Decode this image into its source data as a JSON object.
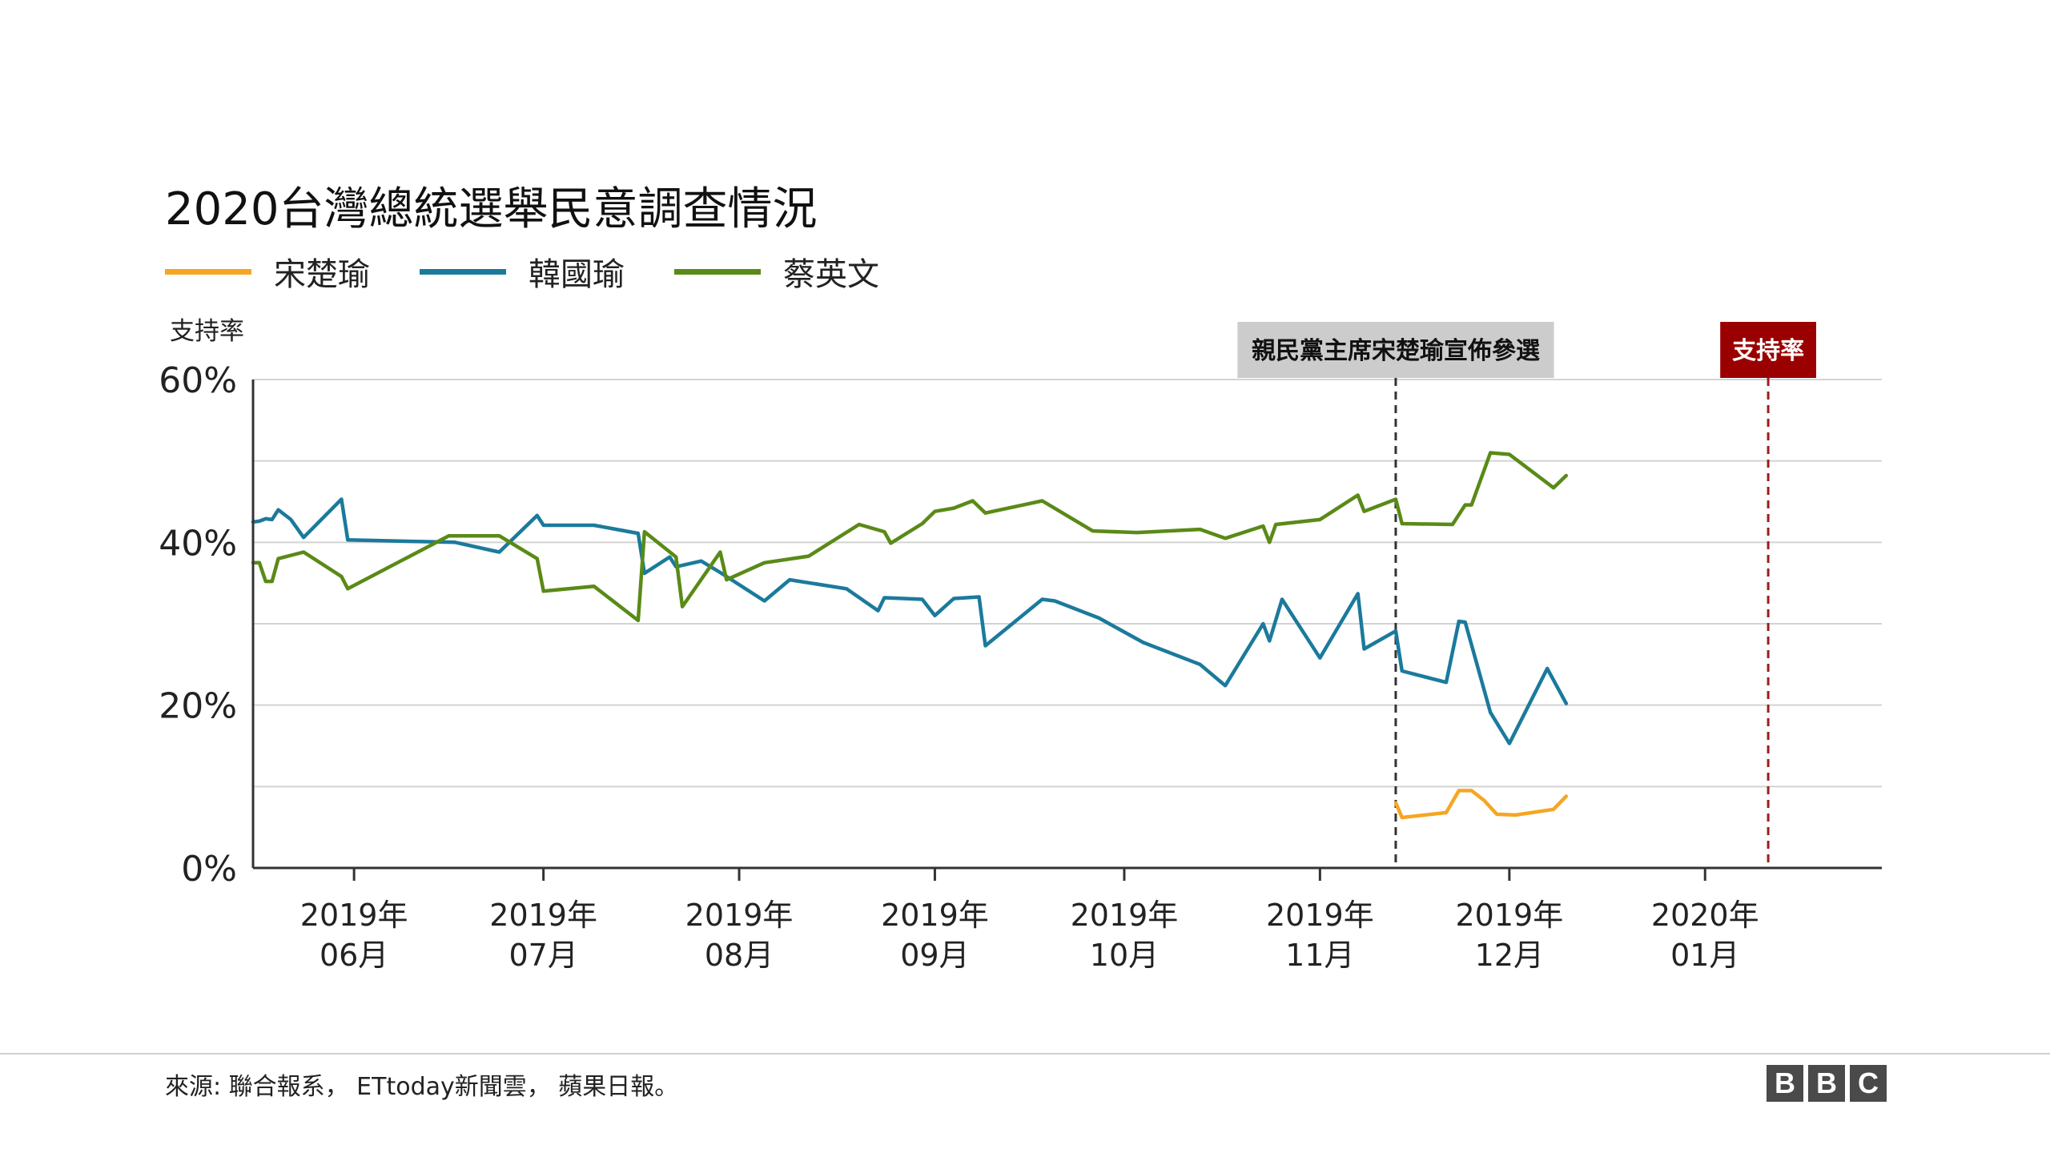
{
  "title": "2020台灣總統選舉民意調查情況",
  "legend": [
    {
      "label": "宋楚瑜",
      "color": "#f5a623"
    },
    {
      "label": "韓國瑜",
      "color": "#1b7a9c"
    },
    {
      "label": "蔡英文",
      "color": "#5a8a17"
    }
  ],
  "source_note": "來源: 聯合報系， ETtoday新聞雲， 蘋果日報。",
  "logo_text": "BBC",
  "chart_data": {
    "type": "line",
    "ylabel": "支持率",
    "ylim": [
      0,
      60
    ],
    "y_ticks": [
      "0%",
      "20%",
      "40%",
      "60%"
    ],
    "gridlines": true,
    "x_range": [
      "2019-05-16",
      "2020-01-29"
    ],
    "x_ticks": [
      {
        "date": "2019-06-01",
        "line1": "2019年",
        "line2": "06月"
      },
      {
        "date": "2019-07-01",
        "line1": "2019年",
        "line2": "07月"
      },
      {
        "date": "2019-08-01",
        "line1": "2019年",
        "line2": "08月"
      },
      {
        "date": "2019-09-01",
        "line1": "2019年",
        "line2": "09月"
      },
      {
        "date": "2019-10-01",
        "line1": "2019年",
        "line2": "10月"
      },
      {
        "date": "2019-11-01",
        "line1": "2019年",
        "line2": "11月"
      },
      {
        "date": "2019-12-01",
        "line1": "2019年",
        "line2": "12月"
      },
      {
        "date": "2020-01-01",
        "line1": "2020年",
        "line2": "01月"
      }
    ],
    "annotations": [
      {
        "date": "2019-11-13",
        "text": "親民黨主席宋楚瑜宣佈參選",
        "line_color": "#333333",
        "box_color": "#cccccc",
        "text_color": "#111111"
      },
      {
        "date": "2020-01-11",
        "text": "支持率",
        "line_color": "#9b1c1c",
        "box_color": "#9b0000",
        "text_color": "#ffffff"
      }
    ],
    "series": [
      {
        "name": "宋楚瑜",
        "color": "#f5a623",
        "points": [
          [
            "2019-11-13",
            8.0
          ],
          [
            "2019-11-14",
            6.2
          ],
          [
            "2019-11-21",
            6.8
          ],
          [
            "2019-11-23",
            9.5
          ],
          [
            "2019-11-25",
            9.5
          ],
          [
            "2019-11-27",
            8.3
          ],
          [
            "2019-11-29",
            6.6
          ],
          [
            "2019-12-02",
            6.5
          ],
          [
            "2019-12-08",
            7.2
          ],
          [
            "2019-12-10",
            8.8
          ]
        ]
      },
      {
        "name": "韓國瑜",
        "color": "#1b7a9c",
        "points": [
          [
            "2019-05-16",
            42.5
          ],
          [
            "2019-05-17",
            42.6
          ],
          [
            "2019-05-18",
            42.9
          ],
          [
            "2019-05-19",
            42.8
          ],
          [
            "2019-05-20",
            44.0
          ],
          [
            "2019-05-22",
            42.8
          ],
          [
            "2019-05-24",
            40.6
          ],
          [
            "2019-05-30",
            45.3
          ],
          [
            "2019-05-31",
            40.3
          ],
          [
            "2019-06-17",
            40.0
          ],
          [
            "2019-06-24",
            38.8
          ],
          [
            "2019-06-30",
            43.3
          ],
          [
            "2019-07-01",
            42.1
          ],
          [
            "2019-07-09",
            42.1
          ],
          [
            "2019-07-16",
            41.1
          ],
          [
            "2019-07-17",
            36.2
          ],
          [
            "2019-07-21",
            38.2
          ],
          [
            "2019-07-22",
            37.0
          ],
          [
            "2019-07-26",
            37.7
          ],
          [
            "2019-07-29",
            36.3
          ],
          [
            "2019-08-05",
            32.8
          ],
          [
            "2019-08-09",
            35.4
          ],
          [
            "2019-08-18",
            34.3
          ],
          [
            "2019-08-23",
            31.6
          ],
          [
            "2019-08-24",
            33.2
          ],
          [
            "2019-08-30",
            33.0
          ],
          [
            "2019-09-01",
            31.0
          ],
          [
            "2019-09-04",
            33.1
          ],
          [
            "2019-09-08",
            33.3
          ],
          [
            "2019-09-09",
            27.3
          ],
          [
            "2019-09-18",
            33.0
          ],
          [
            "2019-09-20",
            32.8
          ],
          [
            "2019-09-27",
            30.7
          ],
          [
            "2019-10-04",
            27.7
          ],
          [
            "2019-10-13",
            25.0
          ],
          [
            "2019-10-17",
            22.4
          ],
          [
            "2019-10-23",
            30.0
          ],
          [
            "2019-10-24",
            27.9
          ],
          [
            "2019-10-26",
            33.0
          ],
          [
            "2019-11-01",
            25.8
          ],
          [
            "2019-11-07",
            33.7
          ],
          [
            "2019-11-08",
            26.9
          ],
          [
            "2019-11-13",
            29.1
          ],
          [
            "2019-11-14",
            24.2
          ],
          [
            "2019-11-21",
            22.8
          ],
          [
            "2019-11-23",
            30.3
          ],
          [
            "2019-11-24",
            30.2
          ],
          [
            "2019-11-28",
            19.1
          ],
          [
            "2019-12-01",
            15.3
          ],
          [
            "2019-12-07",
            24.5
          ],
          [
            "2019-12-10",
            20.2
          ]
        ]
      },
      {
        "name": "蔡英文",
        "color": "#5a8a17",
        "points": [
          [
            "2019-05-16",
            37.5
          ],
          [
            "2019-05-17",
            37.5
          ],
          [
            "2019-05-18",
            35.2
          ],
          [
            "2019-05-19",
            35.2
          ],
          [
            "2019-05-20",
            38.0
          ],
          [
            "2019-05-24",
            38.8
          ],
          [
            "2019-05-30",
            35.8
          ],
          [
            "2019-05-31",
            34.3
          ],
          [
            "2019-06-16",
            40.8
          ],
          [
            "2019-06-24",
            40.8
          ],
          [
            "2019-06-30",
            38.0
          ],
          [
            "2019-07-01",
            34.0
          ],
          [
            "2019-07-09",
            34.6
          ],
          [
            "2019-07-16",
            30.4
          ],
          [
            "2019-07-17",
            41.3
          ],
          [
            "2019-07-22",
            38.2
          ],
          [
            "2019-07-23",
            32.1
          ],
          [
            "2019-07-29",
            38.8
          ],
          [
            "2019-07-30",
            35.4
          ],
          [
            "2019-08-05",
            37.5
          ],
          [
            "2019-08-12",
            38.3
          ],
          [
            "2019-08-20",
            42.2
          ],
          [
            "2019-08-24",
            41.3
          ],
          [
            "2019-08-25",
            39.9
          ],
          [
            "2019-08-30",
            42.3
          ],
          [
            "2019-09-01",
            43.8
          ],
          [
            "2019-09-04",
            44.2
          ],
          [
            "2019-09-07",
            45.1
          ],
          [
            "2019-09-09",
            43.6
          ],
          [
            "2019-09-18",
            45.1
          ],
          [
            "2019-09-26",
            41.4
          ],
          [
            "2019-10-03",
            41.2
          ],
          [
            "2019-10-13",
            41.6
          ],
          [
            "2019-10-17",
            40.5
          ],
          [
            "2019-10-23",
            42.0
          ],
          [
            "2019-10-24",
            40.0
          ],
          [
            "2019-10-25",
            42.2
          ],
          [
            "2019-11-01",
            42.8
          ],
          [
            "2019-11-07",
            45.8
          ],
          [
            "2019-11-08",
            43.8
          ],
          [
            "2019-11-13",
            45.3
          ],
          [
            "2019-11-14",
            42.3
          ],
          [
            "2019-11-22",
            42.2
          ],
          [
            "2019-11-24",
            44.6
          ],
          [
            "2019-11-25",
            44.6
          ],
          [
            "2019-11-28",
            51.0
          ],
          [
            "2019-12-01",
            50.8
          ],
          [
            "2019-12-08",
            46.7
          ],
          [
            "2019-12-10",
            48.2
          ]
        ]
      }
    ]
  }
}
